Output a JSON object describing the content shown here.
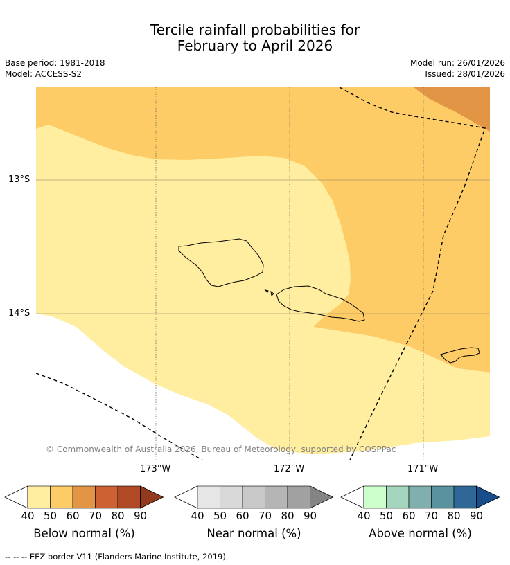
{
  "title": {
    "line1": "Tercile rainfall probabilities for",
    "line2": "February to April 2026"
  },
  "meta": {
    "base_period": "Base period: 1981-2018",
    "model": "Model: ACCESS-S2",
    "model_run": "Model run: 26/01/2026",
    "issued": "Issued: 28/01/2026"
  },
  "map": {
    "lat_labels": [
      "13°S",
      "14°S"
    ],
    "lon_labels": [
      "173°W",
      "172°W",
      "171°W"
    ],
    "copyright": "© Commonwealth of Australia 2026, Bureau of Meteorology, supported by COSPPac",
    "colors": {
      "below_40_50": "#ffeda0",
      "below_50_60": "#fecc66",
      "below_60_70": "#e29545",
      "coast": "#000000"
    }
  },
  "legend": {
    "below": {
      "label": "Below normal (%)",
      "ticks": [
        "40",
        "50",
        "60",
        "70",
        "80",
        "90"
      ],
      "colors": [
        "#ffeda0",
        "#fecc66",
        "#e29545",
        "#cc6133",
        "#b04a26",
        "#933a1e"
      ]
    },
    "near": {
      "label": "Near normal (%)",
      "ticks": [
        "40",
        "50",
        "60",
        "70",
        "80",
        "90"
      ],
      "colors": [
        "#e6e6e6",
        "#d9d9d9",
        "#c8c8c8",
        "#b5b5b5",
        "#a1a1a1",
        "#848484"
      ]
    },
    "above": {
      "label": "Above normal (%)",
      "ticks": [
        "40",
        "50",
        "60",
        "70",
        "80",
        "90"
      ],
      "colors": [
        "#ccffcc",
        "#a3d6bd",
        "#7fb0ad",
        "#5a939f",
        "#2f6797",
        "#174d8a"
      ]
    }
  },
  "footer": "--  --  -- EEZ border V11 (Flanders Marine Institute, 2019)."
}
